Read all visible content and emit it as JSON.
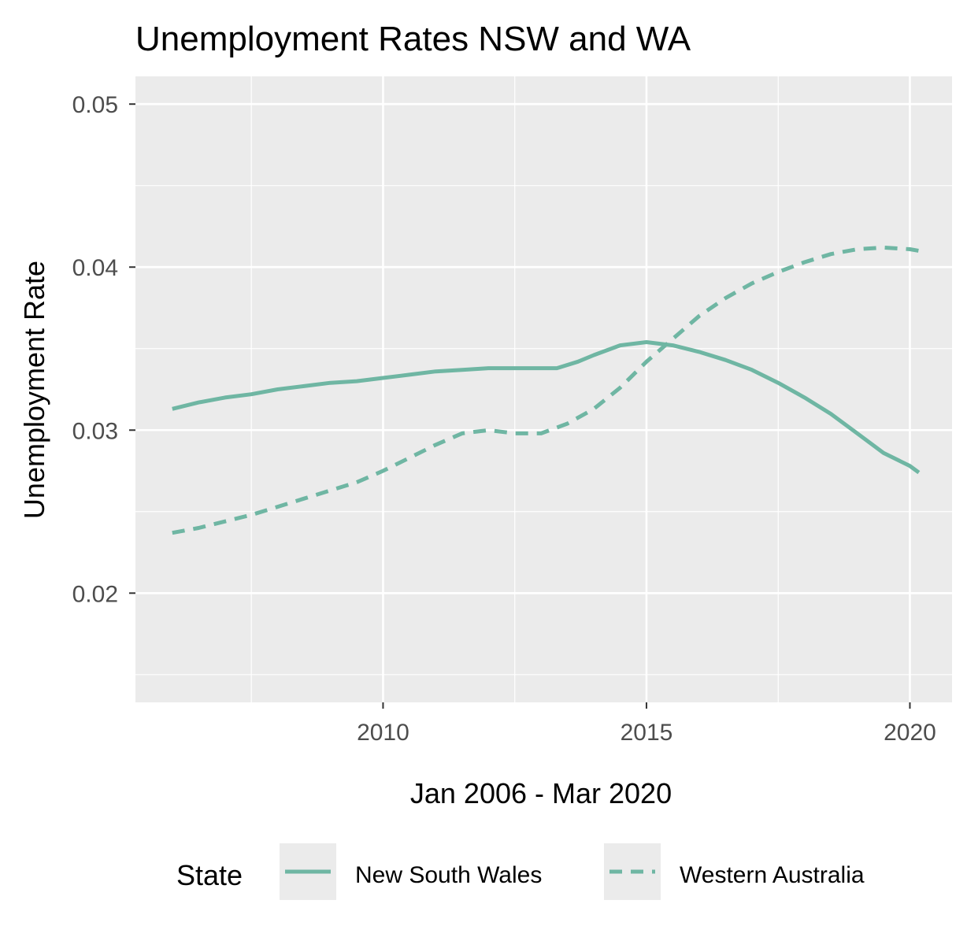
{
  "chart_data": {
    "type": "line",
    "title": "Unemployment Rates NSW and WA",
    "xlabel": "Jan 2006 - Mar 2020",
    "ylabel": "Unemployment Rate",
    "xlim": [
      2005.3,
      2020.8
    ],
    "ylim": [
      0.0133,
      0.0517
    ],
    "x_ticks": [
      2010,
      2015,
      2020
    ],
    "x_tick_labels": [
      "2010",
      "2015",
      "2020"
    ],
    "y_ticks": [
      0.02,
      0.03,
      0.04,
      0.05
    ],
    "y_tick_labels": [
      "0.02",
      "0.03",
      "0.04",
      "0.05"
    ],
    "grid": true,
    "legend": {
      "title": "State",
      "position": "bottom",
      "entries": [
        {
          "label": "New South Wales",
          "style": "solid"
        },
        {
          "label": "Western Australia",
          "style": "dashed"
        }
      ]
    },
    "colors": {
      "series": "#6fb6a3",
      "panel_background": "#ebebeb",
      "grid_major": "#ffffff",
      "tick": "#333333"
    },
    "series": [
      {
        "name": "New South Wales",
        "dash": "solid",
        "x": [
          2006.0,
          2006.5,
          2007.0,
          2007.5,
          2008.0,
          2008.5,
          2009.0,
          2009.5,
          2010.0,
          2010.5,
          2011.0,
          2011.5,
          2012.0,
          2012.5,
          2013.0,
          2013.3,
          2013.7,
          2014.0,
          2014.5,
          2015.0,
          2015.5,
          2016.0,
          2016.5,
          2017.0,
          2017.5,
          2018.0,
          2018.5,
          2019.0,
          2019.5,
          2020.0,
          2020.17
        ],
        "y": [
          0.0313,
          0.0317,
          0.032,
          0.0322,
          0.0325,
          0.0327,
          0.0329,
          0.033,
          0.0332,
          0.0334,
          0.0336,
          0.0337,
          0.0338,
          0.0338,
          0.0338,
          0.0338,
          0.0342,
          0.0346,
          0.0352,
          0.0354,
          0.0352,
          0.0348,
          0.0343,
          0.0337,
          0.0329,
          0.032,
          0.031,
          0.0298,
          0.0286,
          0.0278,
          0.0274
        ]
      },
      {
        "name": "Western Australia",
        "dash": "dashed",
        "x": [
          2006.0,
          2006.5,
          2007.0,
          2007.5,
          2008.0,
          2008.5,
          2009.0,
          2009.5,
          2010.0,
          2010.5,
          2011.0,
          2011.5,
          2012.0,
          2012.5,
          2013.0,
          2013.5,
          2014.0,
          2014.5,
          2015.0,
          2015.5,
          2016.0,
          2016.5,
          2017.0,
          2017.5,
          2018.0,
          2018.5,
          2019.0,
          2019.5,
          2020.0,
          2020.17
        ],
        "y": [
          0.0237,
          0.024,
          0.0244,
          0.0248,
          0.0253,
          0.0258,
          0.0263,
          0.0268,
          0.0275,
          0.0283,
          0.0291,
          0.0298,
          0.03,
          0.0298,
          0.0298,
          0.0304,
          0.0313,
          0.0326,
          0.0342,
          0.0356,
          0.037,
          0.0381,
          0.039,
          0.0397,
          0.0403,
          0.0408,
          0.0411,
          0.0412,
          0.0411,
          0.041
        ]
      }
    ]
  }
}
